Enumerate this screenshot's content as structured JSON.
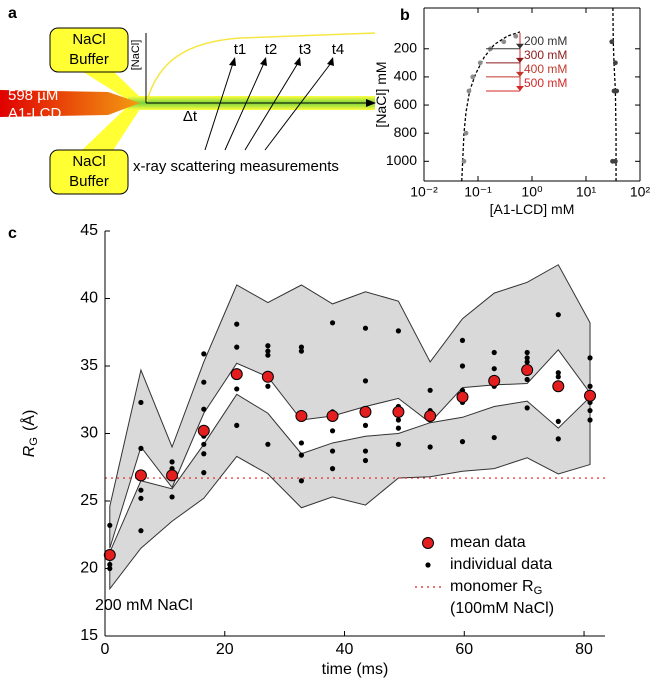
{
  "diagram": {
    "label": "a",
    "buffer_top": [
      "NaCl",
      "Buffer"
    ],
    "buffer_bottom": [
      "NaCl",
      "Buffer"
    ],
    "sample": [
      "598 µM",
      "A1-LCD"
    ],
    "inset_axis": "[NaCl]",
    "times": [
      "t1",
      "t2",
      "t3",
      "t4"
    ],
    "interval": "Δt",
    "measurement": "x-ray scattering measurements"
  },
  "chart_data": [
    {
      "type": "scatter",
      "panel": "b",
      "xlabel": "[A1-LCD] mM",
      "ylabel": "[NaCl] mM",
      "xscale": "log",
      "frame": true,
      "xlim": [
        0.01,
        100
      ],
      "xticks": [
        {
          "value": 0.01,
          "label": "10⁻²"
        },
        {
          "value": 0.1,
          "label": "10⁻¹"
        },
        {
          "value": 1,
          "label": "10⁰"
        },
        {
          "value": 10,
          "label": "10¹"
        },
        {
          "value": 100,
          "label": "10²"
        }
      ],
      "ylim": [
        1140,
        -90
      ],
      "yticks": [
        200,
        400,
        600,
        800,
        1000
      ],
      "series": [
        {
          "color": "#8c8c8c",
          "x": [
            0.055,
            0.06,
            0.068,
            0.08,
            0.11,
            0.17,
            0.3,
            0.5
          ],
          "values": [
            1000,
            800,
            500,
            400,
            300,
            200,
            150,
            110
          ]
        },
        {
          "color": "#404040",
          "x": [
            30,
            35,
            33,
            37,
            31,
            35
          ],
          "values": [
            150,
            300,
            500,
            500,
            1000,
            1000
          ]
        }
      ],
      "curves": [
        {
          "style": "dashed",
          "color": "#000000",
          "x": [
            0.05,
            0.052,
            0.055,
            0.06,
            0.07,
            0.09,
            0.13,
            0.2,
            0.35,
            0.6
          ],
          "values": [
            1140,
            1000,
            800,
            650,
            500,
            380,
            260,
            170,
            110,
            80
          ]
        },
        {
          "style": "dashed",
          "color": "#000000",
          "x": [
            36,
            36,
            35,
            33,
            32,
            31.5
          ],
          "values": [
            1140,
            800,
            500,
            300,
            150,
            -90
          ]
        }
      ],
      "markers": {
        "values": [
          200,
          300,
          400,
          500
        ],
        "value_labels": [
          "200 mM",
          "300 mM",
          "400 mM",
          "500 mM"
        ],
        "colors": [
          "#333333",
          "#8b1a1a",
          "#c0392b",
          "#d62728"
        ]
      }
    },
    {
      "type": "scatter",
      "panel": "c",
      "xlabel": "time (ms)",
      "ylabel": "R",
      "ylabel_sub": "G",
      "ylabel_unit": "(Å)",
      "frame": false,
      "xlim": [
        0,
        83.5
      ],
      "xticks": [
        0,
        20,
        40,
        60,
        80
      ],
      "ylim": [
        15,
        45
      ],
      "yticks": [
        15,
        20,
        25,
        30,
        35,
        40,
        45
      ],
      "bands": [
        {
          "color": "#d9d9d9",
          "x": [
            0.8,
            6,
            11.2,
            16.5,
            22,
            27.2,
            32.8,
            38,
            43.5,
            49,
            54.3,
            59.7,
            65,
            70.5,
            75.7,
            81
          ],
          "upper": [
            24.6,
            34.7,
            29.0,
            35.3,
            41.0,
            39.7,
            41.0,
            39.6,
            40.5,
            39.8,
            35.3,
            38.5,
            40.4,
            41.2,
            42.5,
            38.2
          ],
          "lower": [
            21.5,
            29.0,
            26.0,
            31.5,
            35.2,
            34.2,
            31.0,
            31.3,
            32.0,
            32.6,
            30.8,
            33.4,
            33.6,
            33.7,
            36.2,
            33.0
          ]
        },
        {
          "color": "#d9d9d9",
          "x": [
            0.8,
            6,
            11.2,
            16.5,
            22,
            27.2,
            32.8,
            38,
            43.5,
            49,
            54.3,
            59.7,
            65,
            70.5,
            75.7,
            81
          ],
          "upper": [
            21.2,
            26.5,
            25.9,
            29.2,
            32.9,
            31.5,
            28.5,
            29.3,
            29.8,
            30.0,
            30.8,
            31.2,
            32.0,
            32.4,
            30.4,
            32.7
          ],
          "lower": [
            18.5,
            21.5,
            23.5,
            25.2,
            28.3,
            27.0,
            24.5,
            25.3,
            24.7,
            26.7,
            26.8,
            27.2,
            27.4,
            28.2,
            27.0,
            27.7
          ]
        }
      ],
      "series": [
        {
          "name": "mean data",
          "color": "#e41e1e",
          "x": [
            0.8,
            6,
            11.2,
            16.5,
            22,
            27.2,
            32.8,
            38,
            43.5,
            49,
            54.3,
            59.7,
            65,
            70.5,
            75.7,
            81
          ],
          "values": [
            21.0,
            26.9,
            26.9,
            30.2,
            34.4,
            34.2,
            31.3,
            31.3,
            31.6,
            31.6,
            31.3,
            32.7,
            33.9,
            34.7,
            33.5,
            32.8
          ]
        },
        {
          "name": "individual data",
          "color": "#000000",
          "x": [
            0.8,
            0.8,
            0.8,
            0.8,
            6,
            6,
            6,
            6,
            6,
            11.2,
            11.2,
            11.2,
            11.2,
            16.5,
            16.5,
            16.5,
            16.5,
            16.5,
            16.5,
            16.5,
            22,
            22,
            22,
            22,
            22,
            27.2,
            27.2,
            27.2,
            27.2,
            27.2,
            32.8,
            32.8,
            32.8,
            32.8,
            32.8,
            32.8,
            38,
            38,
            38,
            38,
            38,
            38,
            43.5,
            43.5,
            43.5,
            43.5,
            43.5,
            49,
            49,
            49,
            49,
            49,
            54.3,
            54.3,
            54.3,
            54.3,
            59.7,
            59.7,
            59.7,
            59.7,
            59.7,
            65,
            65,
            65,
            65,
            65,
            70.5,
            70.5,
            70.5,
            70.5,
            70.5,
            70.5,
            75.7,
            75.7,
            75.7,
            75.7,
            75.7,
            75.7,
            81,
            81,
            81,
            81,
            81,
            81
          ],
          "values": [
            20.0,
            20.3,
            21.0,
            23.2,
            22.8,
            25.2,
            25.8,
            28.9,
            32.3,
            25.3,
            26.8,
            27.4,
            27.9,
            27.1,
            28.5,
            29.2,
            29.8,
            31.8,
            33.8,
            35.9,
            30.6,
            33.3,
            34.4,
            36.4,
            38.1,
            29.2,
            33.5,
            35.8,
            36.1,
            36.5,
            26.5,
            28.4,
            29.3,
            31.3,
            36.1,
            36.4,
            27.4,
            28.7,
            30.2,
            31.1,
            31.6,
            38.2,
            28.0,
            28.7,
            30.6,
            33.9,
            37.8,
            29.2,
            30.4,
            31.0,
            32.0,
            37.6,
            29.0,
            31.2,
            31.7,
            33.2,
            29.4,
            32.3,
            33.2,
            35.0,
            36.9,
            29.7,
            33.5,
            34.0,
            34.8,
            36.0,
            31.9,
            34.0,
            34.9,
            35.3,
            35.6,
            36.0,
            29.6,
            30.9,
            33.5,
            34.2,
            34.5,
            38.8,
            31.0,
            31.7,
            32.3,
            33.0,
            33.5,
            35.6
          ]
        }
      ],
      "reference_line": {
        "name": "monomer R",
        "name_sub": "G",
        "name_line2": "(100mM NaCl)",
        "value": 26.7,
        "color": "#e41e1e"
      },
      "annotation": "200 mM NaCl",
      "legend": "lower right"
    }
  ]
}
